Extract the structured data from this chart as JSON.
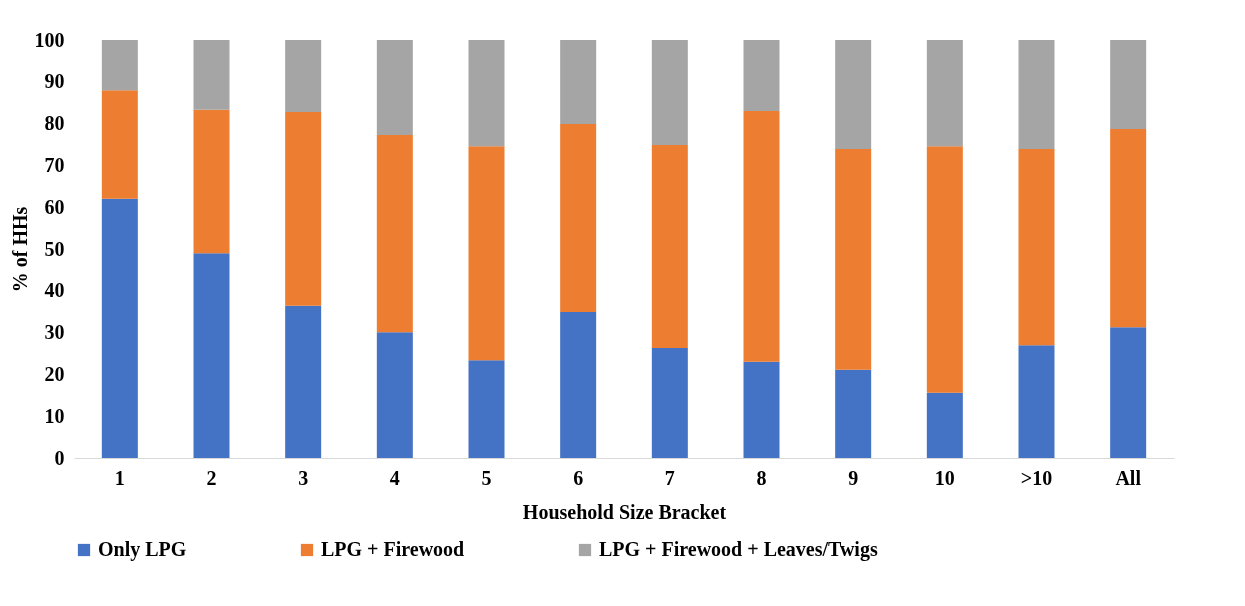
{
  "chart_data": {
    "type": "bar",
    "stacked": true,
    "xlabel": "Household Size Bracket",
    "ylabel": "% of HHs",
    "categories": [
      "1",
      "2",
      "3",
      "4",
      "5",
      "6",
      "7",
      "8",
      "9",
      "10",
      ">10",
      "All"
    ],
    "series": [
      {
        "name": "Only LPG",
        "color": "#4472c4",
        "values": [
          62,
          49,
          36.4,
          30.1,
          23.4,
          34.9,
          26.3,
          23,
          21.1,
          15.6,
          27,
          31.3
        ]
      },
      {
        "name": "LPG + Firewood",
        "color": "#ed7d31",
        "values": [
          26,
          34.3,
          46.4,
          47.2,
          51.2,
          45,
          48.6,
          60,
          52.8,
          59,
          46.9,
          47.4
        ]
      },
      {
        "name": "LPG + Firewood + Leaves/Twigs",
        "color": "#a5a5a5",
        "values": [
          12,
          16.7,
          17.2,
          22.7,
          25.4,
          20.1,
          25.1,
          17,
          26.1,
          25.4,
          26.1,
          21.3
        ]
      }
    ],
    "ylim": [
      0,
      100
    ],
    "yticks": [
      0,
      10,
      20,
      30,
      40,
      50,
      60,
      70,
      80,
      90,
      100
    ],
    "grid": false,
    "legend": "bottom"
  }
}
